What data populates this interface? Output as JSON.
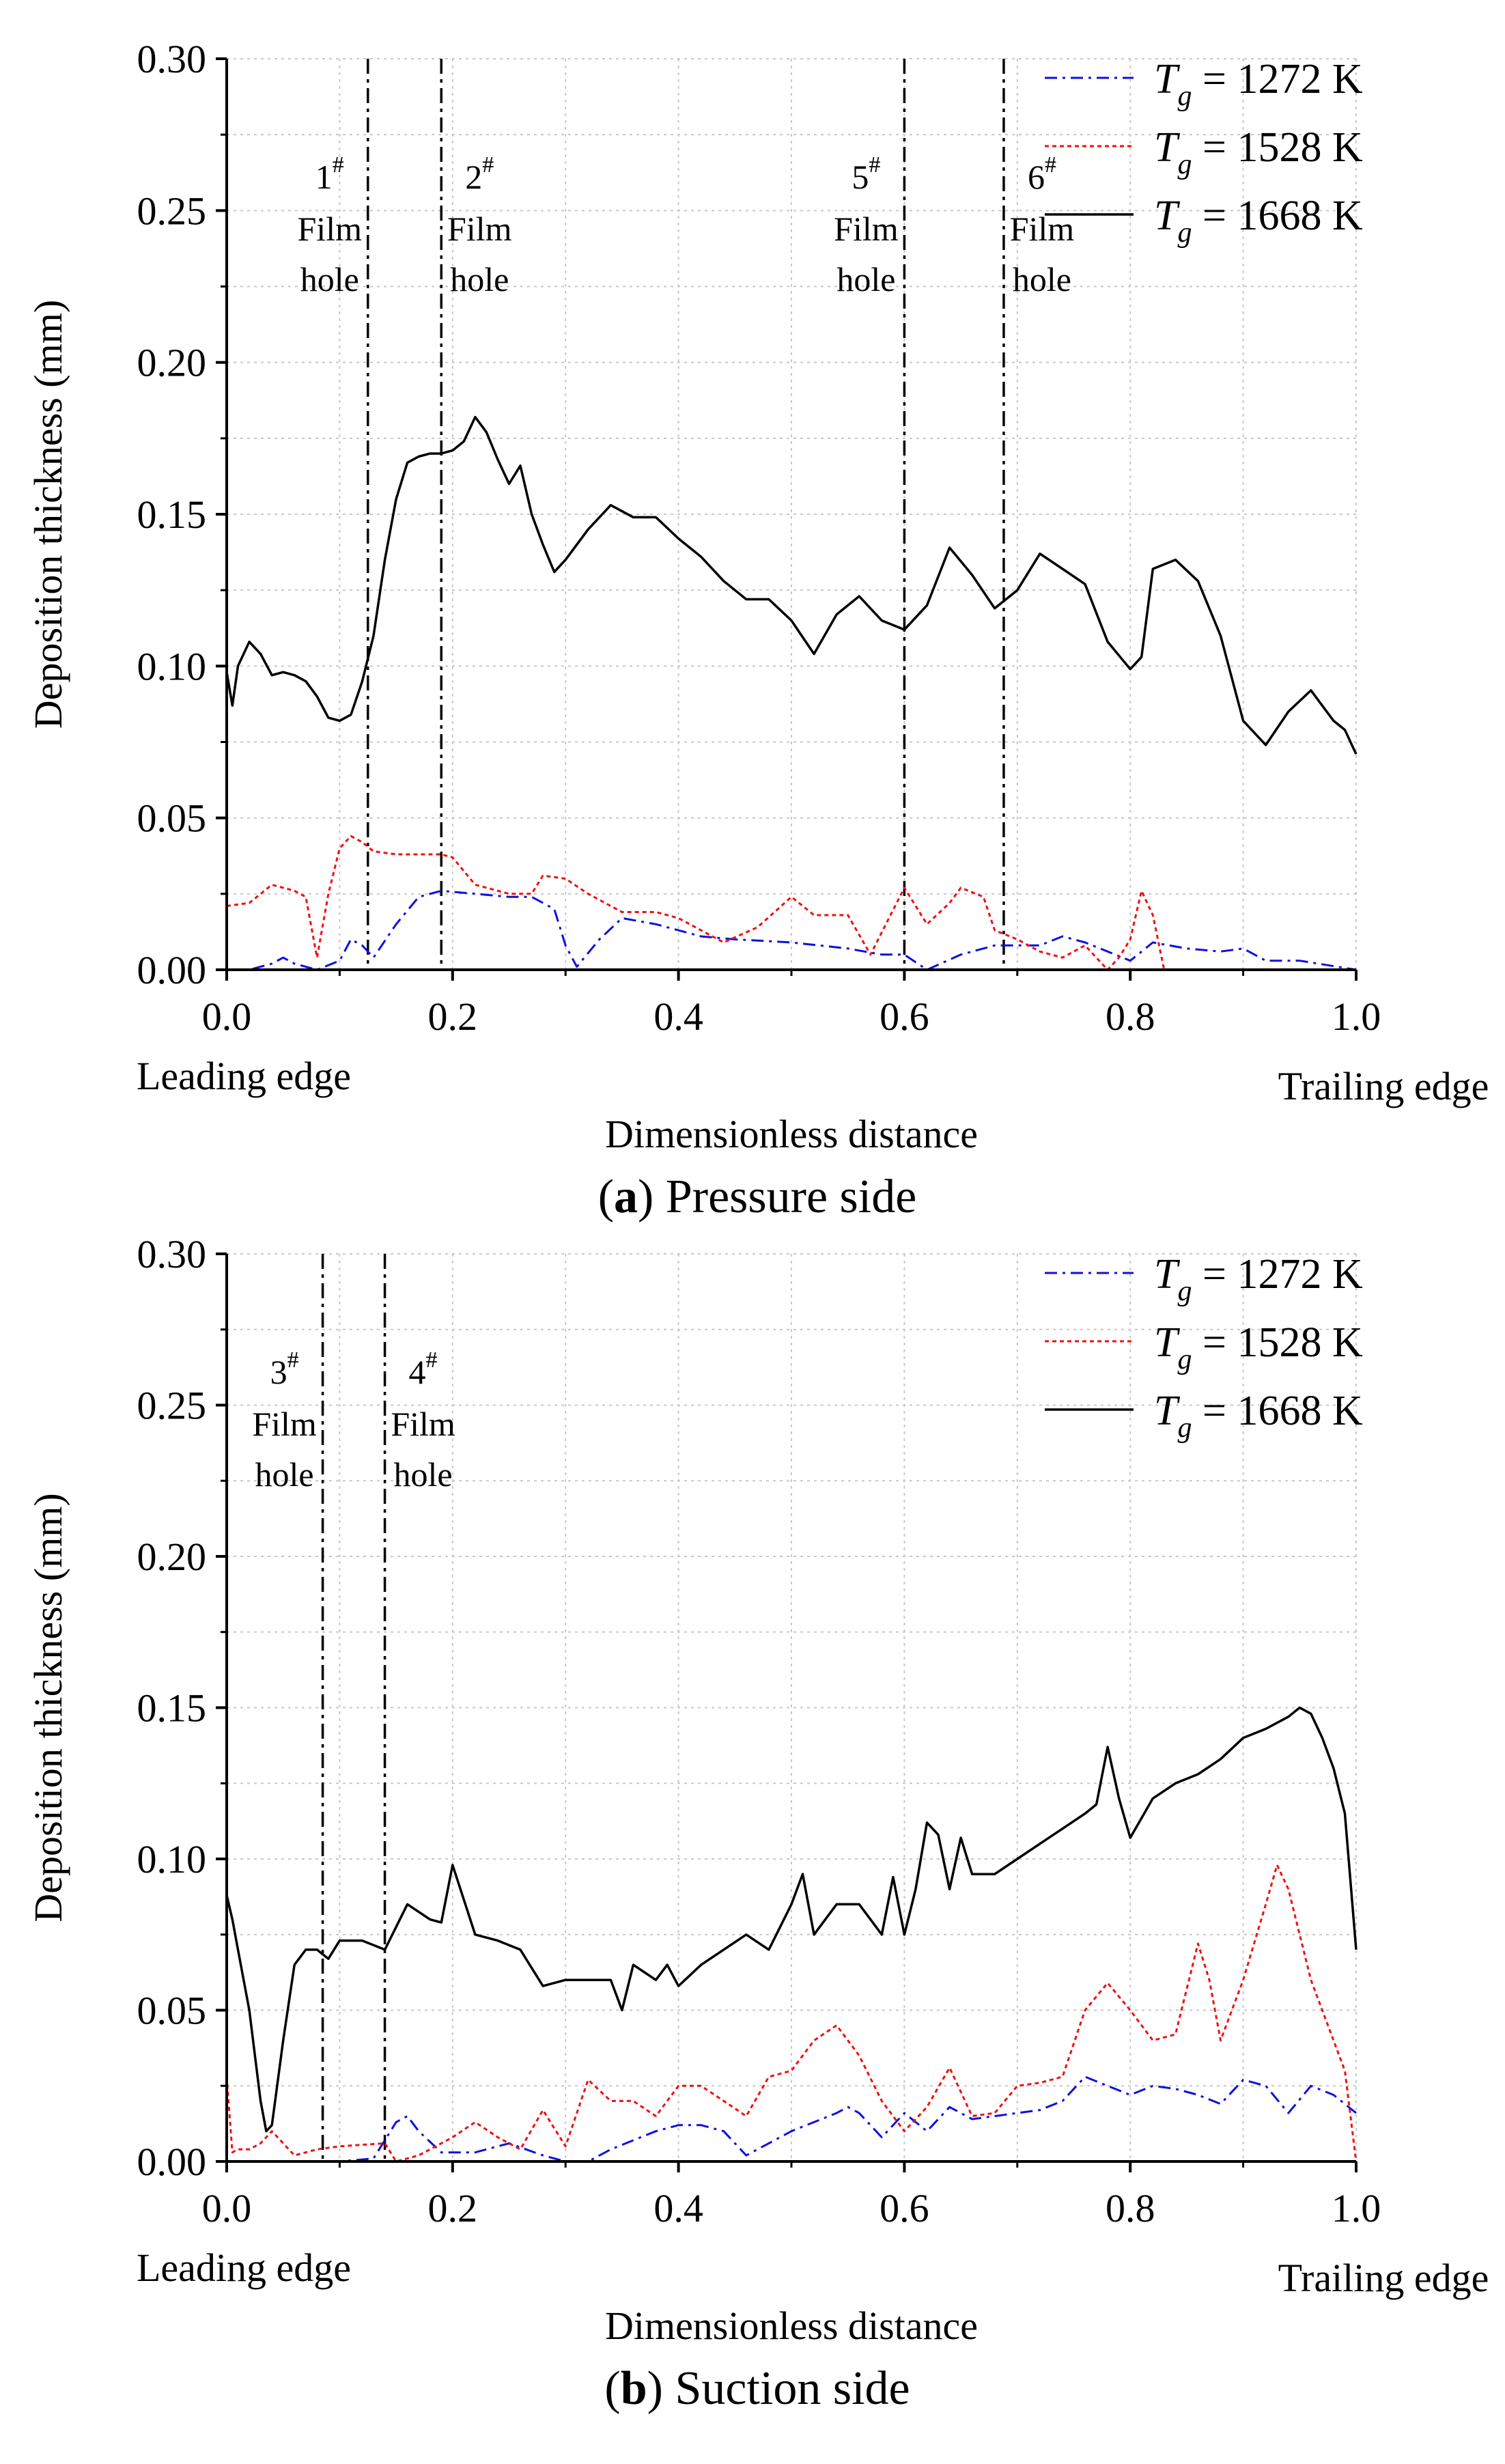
{
  "figure": {
    "captions": [
      {
        "letter": "a",
        "text": " Pressure side"
      },
      {
        "letter": "b",
        "text": " Suction side"
      }
    ]
  },
  "colors": {
    "T1272": "#1010e0",
    "T1528": "#ee1111",
    "T1668": "#000000"
  },
  "chart_data": [
    {
      "type": "line",
      "panel": "a",
      "title": "Pressure side",
      "xlabel": "Dimensionless distance",
      "ylabel": "Deposition thickness (mm)",
      "xlim": [
        0,
        1
      ],
      "ylim": [
        0,
        0.3
      ],
      "xticks": [
        "0.0",
        "0.2",
        "0.4",
        "0.6",
        "0.8",
        "1.0"
      ],
      "yticks": [
        "0.00",
        "0.05",
        "0.10",
        "0.15",
        "0.20",
        "0.25",
        "0.30"
      ],
      "x_edge_labels": {
        "left": "Leading edge",
        "right": "Trailing edge"
      },
      "grid": true,
      "legend_position": "top-right",
      "film_holes": [
        {
          "number": "1",
          "sup": "#",
          "line1": "Film",
          "line2": "hole",
          "x": 0.125,
          "label_side": "left"
        },
        {
          "number": "2",
          "sup": "#",
          "line1": "Film",
          "line2": "hole",
          "x": 0.19,
          "label_side": "right"
        },
        {
          "number": "5",
          "sup": "#",
          "line1": "Film",
          "line2": "hole",
          "x": 0.6,
          "label_side": "left"
        },
        {
          "number": "6",
          "sup": "#",
          "line1": "Film",
          "line2": "hole",
          "x": 0.688,
          "label_side": "right"
        }
      ],
      "series": [
        {
          "name": "T_g = 1272 K",
          "sym": "T",
          "sub": "g",
          "value": " = 1272 K",
          "color": "#1010e0",
          "style": "dashdot",
          "x": [
            0,
            0.02,
            0.04,
            0.05,
            0.06,
            0.08,
            0.1,
            0.11,
            0.12,
            0.13,
            0.15,
            0.17,
            0.19,
            0.22,
            0.25,
            0.27,
            0.29,
            0.3,
            0.31,
            0.33,
            0.35,
            0.38,
            0.42,
            0.45,
            0.5,
            0.55,
            0.58,
            0.6,
            0.62,
            0.65,
            0.68,
            0.7,
            0.72,
            0.74,
            0.76,
            0.78,
            0.8,
            0.82,
            0.85,
            0.88,
            0.9,
            0.92,
            0.95,
            1.0
          ],
          "y": [
            0,
            0,
            0.002,
            0.004,
            0.002,
            0,
            0.003,
            0.01,
            0.008,
            0.004,
            0.015,
            0.024,
            0.026,
            0.025,
            0.024,
            0.024,
            0.02,
            0.008,
            0.001,
            0.01,
            0.017,
            0.015,
            0.011,
            0.01,
            0.009,
            0.007,
            0.005,
            0.005,
            0,
            0.005,
            0.008,
            0.008,
            0.008,
            0.011,
            0.009,
            0.006,
            0.003,
            0.009,
            0.007,
            0.006,
            0.007,
            0.003,
            0.003,
            0
          ]
        },
        {
          "name": "T_g = 1528 K",
          "sym": "T",
          "sub": "g",
          "value": " = 1528 K",
          "color": "#ee1111",
          "style": "dotted",
          "x": [
            0,
            0.02,
            0.04,
            0.06,
            0.07,
            0.08,
            0.09,
            0.1,
            0.11,
            0.12,
            0.13,
            0.15,
            0.17,
            0.19,
            0.2,
            0.22,
            0.25,
            0.27,
            0.28,
            0.3,
            0.32,
            0.35,
            0.38,
            0.4,
            0.44,
            0.47,
            0.5,
            0.52,
            0.55,
            0.57,
            0.6,
            0.62,
            0.64,
            0.65,
            0.67,
            0.68,
            0.7,
            0.72,
            0.74,
            0.76,
            0.78,
            0.79,
            0.8,
            0.81,
            0.82,
            0.83
          ],
          "y": [
            0.021,
            0.022,
            0.028,
            0.026,
            0.024,
            0.004,
            0.025,
            0.04,
            0.044,
            0.042,
            0.039,
            0.038,
            0.038,
            0.038,
            0.037,
            0.028,
            0.025,
            0.025,
            0.031,
            0.03,
            0.025,
            0.019,
            0.019,
            0.017,
            0.009,
            0.014,
            0.024,
            0.018,
            0.018,
            0.005,
            0.027,
            0.015,
            0.022,
            0.027,
            0.024,
            0.013,
            0.01,
            0.006,
            0.004,
            0.008,
            0,
            0.004,
            0.01,
            0.026,
            0.018,
            0
          ]
        },
        {
          "name": "T_g = 1668 K",
          "sym": "T",
          "sub": "g",
          "value": " = 1668 K",
          "color": "#000000",
          "style": "solid",
          "x": [
            0,
            0.005,
            0.01,
            0.02,
            0.03,
            0.04,
            0.05,
            0.06,
            0.07,
            0.08,
            0.09,
            0.1,
            0.11,
            0.12,
            0.13,
            0.14,
            0.15,
            0.16,
            0.17,
            0.18,
            0.19,
            0.2,
            0.21,
            0.22,
            0.23,
            0.24,
            0.25,
            0.26,
            0.27,
            0.28,
            0.29,
            0.3,
            0.32,
            0.34,
            0.36,
            0.38,
            0.4,
            0.42,
            0.44,
            0.46,
            0.48,
            0.5,
            0.52,
            0.54,
            0.56,
            0.58,
            0.6,
            0.62,
            0.64,
            0.66,
            0.68,
            0.7,
            0.72,
            0.74,
            0.76,
            0.78,
            0.8,
            0.81,
            0.82,
            0.84,
            0.86,
            0.88,
            0.9,
            0.92,
            0.94,
            0.96,
            0.98,
            0.99,
            1.0
          ],
          "y": [
            0.098,
            0.087,
            0.1,
            0.108,
            0.104,
            0.097,
            0.098,
            0.097,
            0.095,
            0.09,
            0.083,
            0.082,
            0.084,
            0.095,
            0.11,
            0.135,
            0.155,
            0.167,
            0.169,
            0.17,
            0.17,
            0.171,
            0.174,
            0.182,
            0.177,
            0.168,
            0.16,
            0.166,
            0.15,
            0.14,
            0.131,
            0.135,
            0.145,
            0.153,
            0.149,
            0.149,
            0.142,
            0.136,
            0.128,
            0.122,
            0.122,
            0.115,
            0.104,
            0.117,
            0.123,
            0.115,
            0.112,
            0.12,
            0.139,
            0.13,
            0.119,
            0.125,
            0.137,
            0.132,
            0.127,
            0.108,
            0.099,
            0.103,
            0.132,
            0.135,
            0.128,
            0.11,
            0.082,
            0.074,
            0.085,
            0.092,
            0.082,
            0.079,
            0.071
          ]
        }
      ]
    },
    {
      "type": "line",
      "panel": "b",
      "title": "Suction side",
      "xlabel": "Dimensionless distance",
      "ylabel": "Deposition thickness (mm)",
      "xlim": [
        0,
        1
      ],
      "ylim": [
        0,
        0.3
      ],
      "xticks": [
        "0.0",
        "0.2",
        "0.4",
        "0.6",
        "0.8",
        "1.0"
      ],
      "yticks": [
        "0.00",
        "0.05",
        "0.10",
        "0.15",
        "0.20",
        "0.25",
        "0.30"
      ],
      "x_edge_labels": {
        "left": "Leading edge",
        "right": "Trailing edge"
      },
      "grid": true,
      "legend_position": "top-right",
      "film_holes": [
        {
          "number": "3",
          "sup": "#",
          "line1": "Film",
          "line2": "hole",
          "x": 0.085,
          "label_side": "left"
        },
        {
          "number": "4",
          "sup": "#",
          "line1": "Film",
          "line2": "hole",
          "x": 0.14,
          "label_side": "right"
        }
      ],
      "series": [
        {
          "name": "T_g = 1272 K",
          "sym": "T",
          "sub": "g",
          "value": " = 1272 K",
          "color": "#1010e0",
          "style": "dashdot",
          "x": [
            0,
            0.05,
            0.1,
            0.13,
            0.15,
            0.16,
            0.17,
            0.19,
            0.22,
            0.25,
            0.28,
            0.3,
            0.32,
            0.34,
            0.36,
            0.38,
            0.4,
            0.42,
            0.44,
            0.46,
            0.48,
            0.5,
            0.52,
            0.54,
            0.55,
            0.56,
            0.58,
            0.6,
            0.62,
            0.64,
            0.66,
            0.68,
            0.7,
            0.72,
            0.74,
            0.76,
            0.78,
            0.8,
            0.82,
            0.84,
            0.86,
            0.88,
            0.9,
            0.92,
            0.94,
            0.96,
            0.98,
            1.0
          ],
          "y": [
            0,
            0,
            0,
            0.001,
            0.013,
            0.015,
            0.01,
            0.003,
            0.003,
            0.006,
            0.002,
            0,
            0,
            0.004,
            0.007,
            0.01,
            0.012,
            0.012,
            0.01,
            0.002,
            0.006,
            0.01,
            0.013,
            0.016,
            0.018,
            0.016,
            0.008,
            0.016,
            0.01,
            0.018,
            0.014,
            0.015,
            0.016,
            0.017,
            0.02,
            0.028,
            0.025,
            0.022,
            0.025,
            0.024,
            0.022,
            0.019,
            0.027,
            0.025,
            0.016,
            0.025,
            0.022,
            0.016
          ]
        },
        {
          "name": "T_g = 1528 K",
          "sym": "T",
          "sub": "g",
          "value": " = 1528 K",
          "color": "#ee1111",
          "style": "dotted",
          "x": [
            0,
            0.005,
            0.01,
            0.02,
            0.03,
            0.04,
            0.05,
            0.06,
            0.08,
            0.1,
            0.14,
            0.15,
            0.17,
            0.2,
            0.22,
            0.24,
            0.26,
            0.28,
            0.3,
            0.32,
            0.34,
            0.36,
            0.38,
            0.4,
            0.42,
            0.44,
            0.46,
            0.48,
            0.5,
            0.52,
            0.54,
            0.56,
            0.58,
            0.6,
            0.62,
            0.64,
            0.66,
            0.68,
            0.7,
            0.72,
            0.74,
            0.76,
            0.78,
            0.8,
            0.82,
            0.84,
            0.86,
            0.87,
            0.88,
            0.9,
            0.92,
            0.93,
            0.94,
            0.95,
            0.96,
            0.97,
            0.98,
            0.99,
            1.0
          ],
          "y": [
            0.028,
            0.003,
            0.004,
            0.004,
            0.006,
            0.01,
            0.006,
            0.002,
            0.004,
            0.005,
            0.006,
            0,
            0.002,
            0.008,
            0.013,
            0.008,
            0.004,
            0.017,
            0.005,
            0.027,
            0.02,
            0.02,
            0.015,
            0.025,
            0.025,
            0.02,
            0.015,
            0.028,
            0.03,
            0.04,
            0.045,
            0.035,
            0.02,
            0.01,
            0.018,
            0.031,
            0.015,
            0.016,
            0.025,
            0.026,
            0.028,
            0.05,
            0.059,
            0.05,
            0.04,
            0.042,
            0.072,
            0.06,
            0.04,
            0.06,
            0.085,
            0.098,
            0.09,
            0.075,
            0.06,
            0.05,
            0.04,
            0.03,
            0
          ]
        },
        {
          "name": "T_g = 1668 K",
          "sym": "T",
          "sub": "g",
          "value": " = 1668 K",
          "color": "#000000",
          "style": "solid",
          "x": [
            0,
            0.005,
            0.01,
            0.02,
            0.03,
            0.035,
            0.04,
            0.05,
            0.06,
            0.07,
            0.08,
            0.09,
            0.1,
            0.12,
            0.14,
            0.16,
            0.18,
            0.19,
            0.2,
            0.22,
            0.24,
            0.26,
            0.28,
            0.3,
            0.32,
            0.34,
            0.35,
            0.36,
            0.38,
            0.39,
            0.4,
            0.42,
            0.44,
            0.46,
            0.48,
            0.5,
            0.51,
            0.52,
            0.54,
            0.56,
            0.58,
            0.59,
            0.6,
            0.61,
            0.62,
            0.63,
            0.64,
            0.65,
            0.66,
            0.68,
            0.7,
            0.72,
            0.74,
            0.76,
            0.77,
            0.78,
            0.79,
            0.8,
            0.82,
            0.84,
            0.86,
            0.88,
            0.9,
            0.92,
            0.94,
            0.95,
            0.96,
            0.97,
            0.98,
            0.99,
            1.0
          ],
          "y": [
            0.088,
            0.08,
            0.07,
            0.05,
            0.02,
            0.01,
            0.012,
            0.04,
            0.065,
            0.07,
            0.07,
            0.067,
            0.073,
            0.073,
            0.07,
            0.085,
            0.08,
            0.079,
            0.098,
            0.075,
            0.073,
            0.07,
            0.058,
            0.06,
            0.06,
            0.06,
            0.05,
            0.065,
            0.06,
            0.065,
            0.058,
            0.065,
            0.07,
            0.075,
            0.07,
            0.085,
            0.095,
            0.075,
            0.085,
            0.085,
            0.075,
            0.094,
            0.075,
            0.09,
            0.112,
            0.108,
            0.09,
            0.107,
            0.095,
            0.095,
            0.1,
            0.105,
            0.11,
            0.115,
            0.118,
            0.137,
            0.12,
            0.107,
            0.12,
            0.125,
            0.128,
            0.133,
            0.14,
            0.143,
            0.147,
            0.15,
            0.148,
            0.14,
            0.13,
            0.115,
            0.07
          ]
        }
      ]
    }
  ]
}
